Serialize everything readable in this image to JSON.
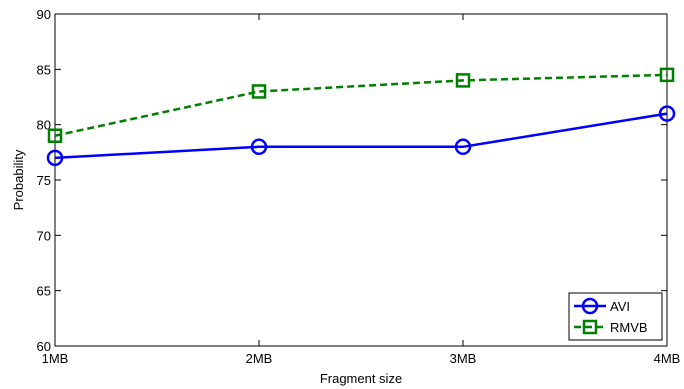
{
  "chart_data": {
    "type": "line",
    "title": "",
    "xlabel": "Fragment size",
    "ylabel": "Probability",
    "categories": [
      "1MB",
      "2MB",
      "3MB",
      "4MB"
    ],
    "ylim": [
      60,
      90
    ],
    "yticks": [
      60,
      65,
      70,
      75,
      80,
      85,
      90
    ],
    "grid": false,
    "legend_position": "bottom-right",
    "series": [
      {
        "name": "AVI",
        "values": [
          77,
          78,
          78,
          81
        ],
        "color": "#0000ff",
        "line_style": "solid",
        "marker": "circle"
      },
      {
        "name": "RMVB",
        "values": [
          79,
          83,
          84,
          84.5
        ],
        "color": "#008000",
        "line_style": "dashed",
        "marker": "square"
      }
    ]
  }
}
